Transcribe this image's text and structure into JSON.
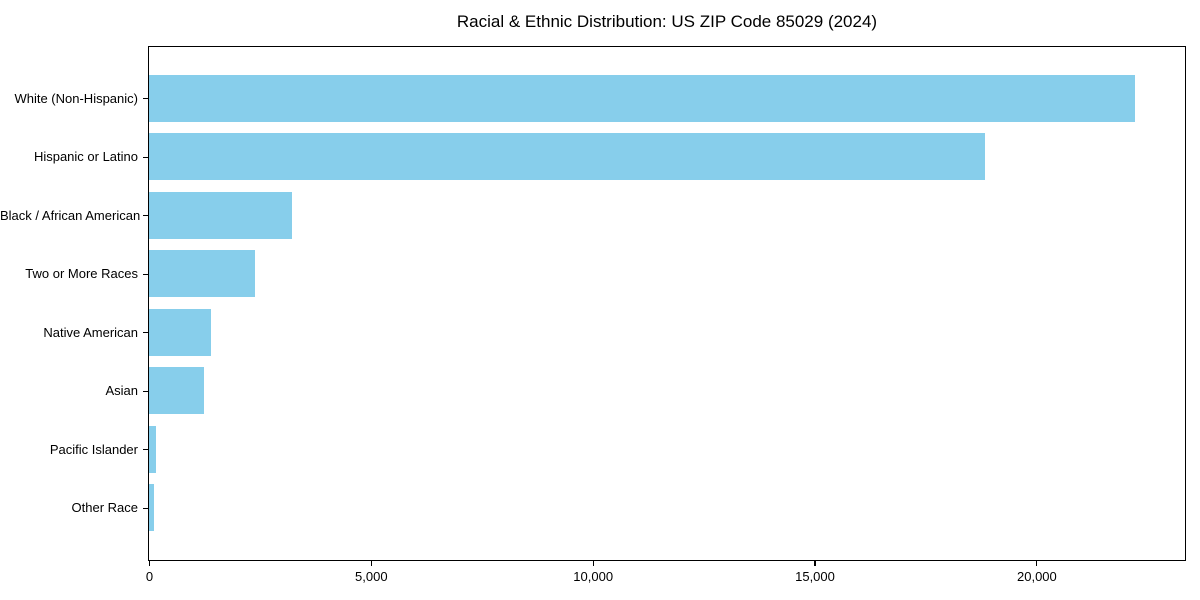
{
  "chart_data": {
    "type": "bar",
    "orientation": "horizontal",
    "title": "Racial & Ethnic Distribution: US ZIP Code 85029 (2024)",
    "categories": [
      "White (Non-Hispanic)",
      "Hispanic or Latino",
      "Black / African American",
      "Two or More Races",
      "Native American",
      "Asian",
      "Pacific Islander",
      "Other Race"
    ],
    "values": [
      22230,
      18830,
      3220,
      2390,
      1400,
      1240,
      150,
      120
    ],
    "xlabel": "",
    "ylabel": "",
    "xlim": [
      0,
      23350
    ],
    "xticks": [
      0,
      5000,
      10000,
      15000,
      20000
    ],
    "xtick_labels": [
      "0",
      "5,000",
      "10,000",
      "15,000",
      "20,000"
    ],
    "bar_color": "#87CEEB",
    "axis_color": "#000000",
    "text_color": "#000000",
    "background": "#ffffff",
    "grid": false,
    "legend": null
  }
}
